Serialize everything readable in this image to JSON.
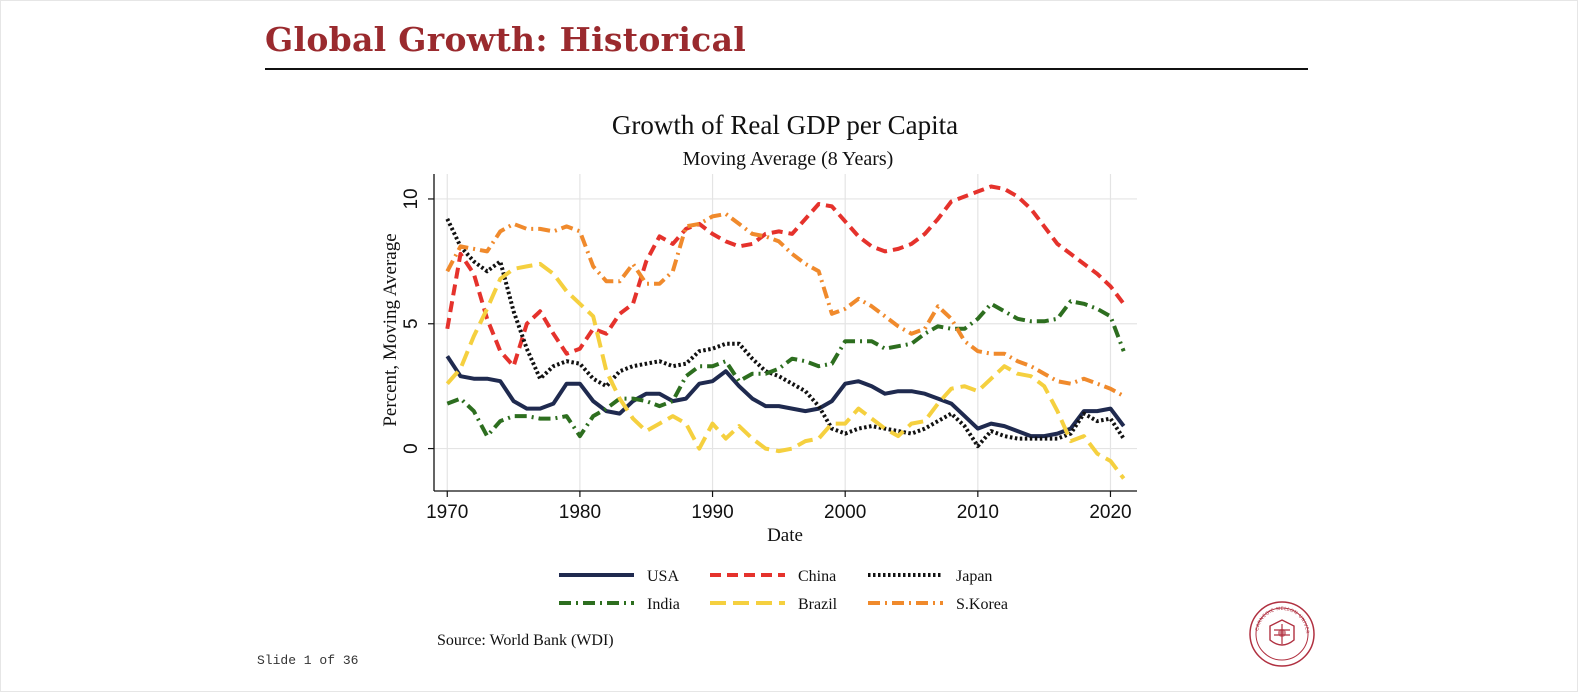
{
  "slide": {
    "title": "Global Growth: Historical",
    "source": "Source: World Bank (WDI)",
    "slide_number": "Slide 1 of 36",
    "logo_text": "CARNEGIE MELLON UNIVERSITY",
    "title_color": "#9a2a2e"
  },
  "chart_data": {
    "type": "line",
    "title": "Growth of  Real GDP per Capita",
    "subtitle": "Moving Average (8 Years)",
    "xlabel": "Date",
    "ylabel": "Percent, Moving Average",
    "xlim": [
      1969,
      2022
    ],
    "ylim": [
      -1.7,
      11
    ],
    "xticks": [
      1970,
      1980,
      1990,
      2000,
      2010,
      2020
    ],
    "yticks": [
      0,
      5,
      10
    ],
    "grid": true,
    "legend_position": "bottom",
    "x": [
      1970,
      1971,
      1972,
      1973,
      1974,
      1975,
      1976,
      1977,
      1978,
      1979,
      1980,
      1981,
      1982,
      1983,
      1984,
      1985,
      1986,
      1987,
      1988,
      1989,
      1990,
      1991,
      1992,
      1993,
      1994,
      1995,
      1996,
      1997,
      1998,
      1999,
      2000,
      2001,
      2002,
      2003,
      2004,
      2005,
      2006,
      2007,
      2008,
      2009,
      2010,
      2011,
      2012,
      2013,
      2014,
      2015,
      2016,
      2017,
      2018,
      2019,
      2020,
      2021
    ],
    "series": [
      {
        "name": "USA",
        "color": "#1f2a4f",
        "dash": "solid",
        "values": [
          3.7,
          2.9,
          2.8,
          2.8,
          2.7,
          1.9,
          1.6,
          1.6,
          1.8,
          2.6,
          2.6,
          1.9,
          1.5,
          1.4,
          1.9,
          2.2,
          2.2,
          1.9,
          2.0,
          2.6,
          2.7,
          3.1,
          2.5,
          2.0,
          1.7,
          1.7,
          1.6,
          1.5,
          1.6,
          1.9,
          2.6,
          2.7,
          2.5,
          2.2,
          2.3,
          2.3,
          2.2,
          2.0,
          1.8,
          1.3,
          0.8,
          1.0,
          0.9,
          0.7,
          0.5,
          0.5,
          0.6,
          0.8,
          1.5,
          1.5,
          1.6,
          0.9
        ]
      },
      {
        "name": "China",
        "color": "#e5322c",
        "dash": "dash",
        "values": [
          4.8,
          7.8,
          7.0,
          5.2,
          3.9,
          3.3,
          5.0,
          5.5,
          4.6,
          3.8,
          4.0,
          4.8,
          4.6,
          5.4,
          5.8,
          7.5,
          8.5,
          8.2,
          8.8,
          9.0,
          8.6,
          8.3,
          8.1,
          8.2,
          8.6,
          8.7,
          8.6,
          9.2,
          9.8,
          9.7,
          9.1,
          8.5,
          8.1,
          7.9,
          8.0,
          8.2,
          8.6,
          9.2,
          9.9,
          10.1,
          10.3,
          10.5,
          10.4,
          10.1,
          9.6,
          8.9,
          8.2,
          7.8,
          7.4,
          7.0,
          6.5,
          5.8
        ]
      },
      {
        "name": "Japan",
        "color": "#111111",
        "dash": "dot",
        "values": [
          9.2,
          8.1,
          7.5,
          7.1,
          7.5,
          5.5,
          4.0,
          2.8,
          3.3,
          3.5,
          3.4,
          2.8,
          2.5,
          3.1,
          3.3,
          3.4,
          3.5,
          3.3,
          3.4,
          3.9,
          4.0,
          4.2,
          4.2,
          3.6,
          3.1,
          2.9,
          2.6,
          2.3,
          1.7,
          0.8,
          0.6,
          0.8,
          0.9,
          0.8,
          0.7,
          0.6,
          0.8,
          1.1,
          1.4,
          0.9,
          0.1,
          0.7,
          0.5,
          0.4,
          0.4,
          0.4,
          0.4,
          0.6,
          1.4,
          1.1,
          1.2,
          0.4
        ]
      },
      {
        "name": "India",
        "color": "#2d6e1f",
        "dash": "dashdot",
        "values": [
          1.8,
          2.0,
          1.5,
          0.5,
          1.1,
          1.3,
          1.3,
          1.2,
          1.2,
          1.3,
          0.5,
          1.3,
          1.6,
          2.0,
          2.0,
          1.9,
          1.7,
          1.9,
          2.9,
          3.3,
          3.3,
          3.5,
          2.7,
          3.0,
          3.0,
          3.2,
          3.6,
          3.5,
          3.3,
          3.4,
          4.3,
          4.3,
          4.3,
          4.0,
          4.1,
          4.2,
          4.6,
          4.9,
          4.8,
          4.8,
          5.2,
          5.8,
          5.5,
          5.2,
          5.1,
          5.1,
          5.2,
          5.9,
          5.8,
          5.6,
          5.3,
          3.9
        ]
      },
      {
        "name": "Brazil",
        "color": "#f5d03f",
        "dash": "longdash",
        "values": [
          2.6,
          3.2,
          4.5,
          5.6,
          6.8,
          7.2,
          7.3,
          7.4,
          7.0,
          6.3,
          5.8,
          5.3,
          3.1,
          2.0,
          1.2,
          0.7,
          1.0,
          1.3,
          1.0,
          0.0,
          1.0,
          0.4,
          0.9,
          0.4,
          0.0,
          -0.1,
          0.0,
          0.3,
          0.4,
          1.0,
          1.0,
          1.6,
          1.2,
          0.8,
          0.5,
          1.0,
          1.1,
          1.8,
          2.4,
          2.5,
          2.3,
          2.8,
          3.3,
          3.0,
          2.9,
          2.5,
          1.5,
          0.3,
          0.5,
          -0.2,
          -0.5,
          -1.2
        ]
      },
      {
        "name": "S.Korea",
        "color": "#f08a2c",
        "dash": "dashdot",
        "values": [
          7.1,
          8.1,
          8.0,
          7.9,
          8.7,
          9.0,
          8.8,
          8.8,
          8.7,
          8.9,
          8.7,
          7.3,
          6.7,
          6.7,
          7.4,
          6.6,
          6.6,
          7.1,
          8.9,
          9.0,
          9.3,
          9.4,
          9.0,
          8.6,
          8.5,
          8.3,
          7.8,
          7.4,
          7.1,
          5.4,
          5.6,
          6.0,
          5.7,
          5.3,
          4.9,
          4.6,
          4.8,
          5.7,
          5.2,
          4.3,
          3.9,
          3.8,
          3.8,
          3.5,
          3.3,
          3.0,
          2.7,
          2.6,
          2.8,
          2.6,
          2.4,
          2.1
        ]
      }
    ]
  }
}
